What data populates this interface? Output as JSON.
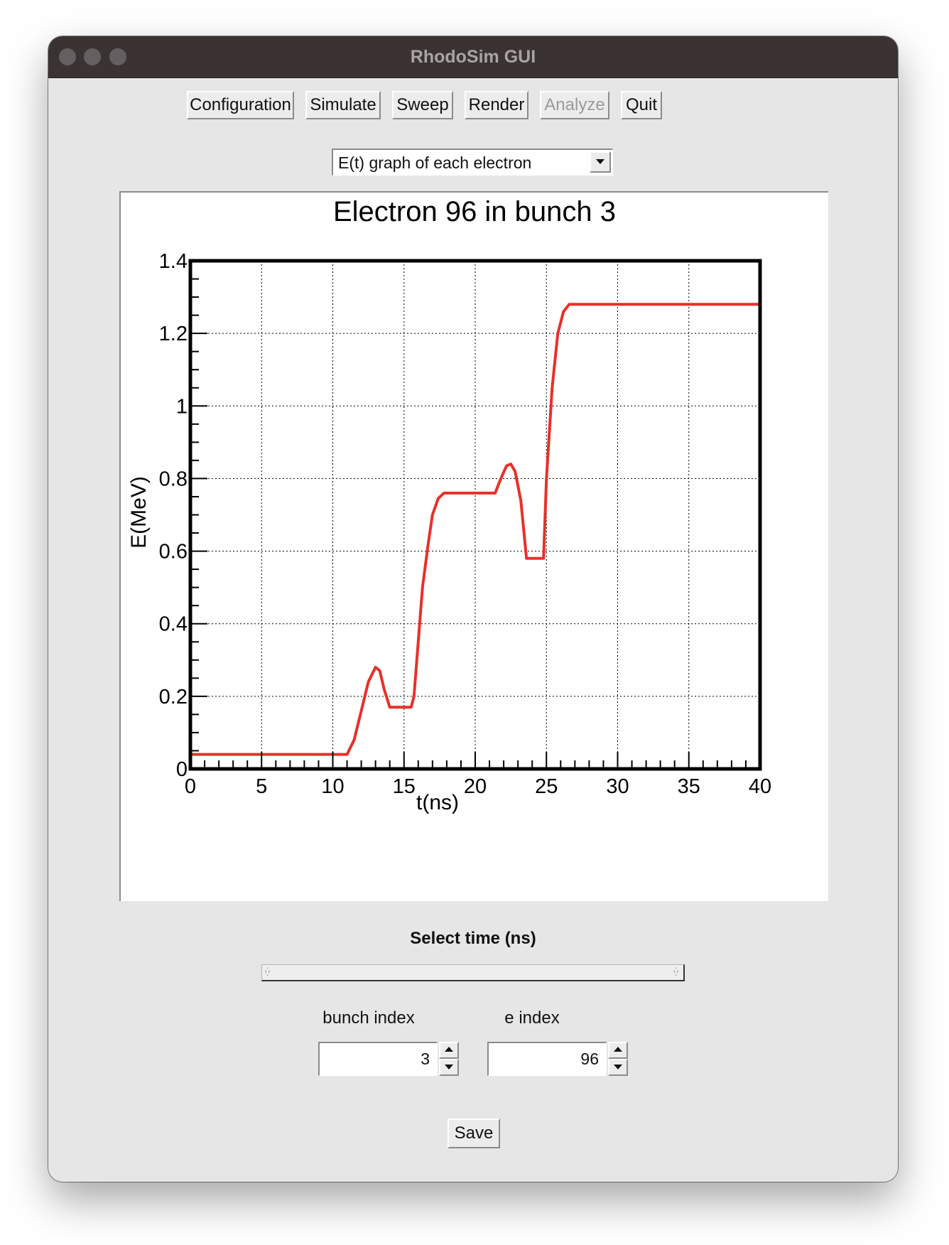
{
  "window": {
    "title": "RhodoSim GUI"
  },
  "toolbar": {
    "buttons": [
      {
        "label": "Configuration",
        "enabled": true
      },
      {
        "label": "Simulate",
        "enabled": true
      },
      {
        "label": "Sweep",
        "enabled": true
      },
      {
        "label": "Render",
        "enabled": true
      },
      {
        "label": "Analyze",
        "enabled": false
      },
      {
        "label": "Quit",
        "enabled": true
      }
    ]
  },
  "view_select": {
    "selected": "E(t) graph of each electron"
  },
  "chart_data": {
    "type": "line",
    "title": "Electron 96 in bunch 3",
    "xlabel": "t(ns)",
    "ylabel": "E(MeV)",
    "xlim": [
      0,
      40
    ],
    "ylim": [
      0,
      1.4
    ],
    "xticks": [
      "0",
      "5",
      "10",
      "15",
      "20",
      "25",
      "30",
      "35",
      "40"
    ],
    "yticks": [
      "0",
      "0.2",
      "0.4",
      "0.6",
      "0.8",
      "1",
      "1.2",
      "1.4"
    ],
    "grid": true,
    "line_color": "#e8302a",
    "series": [
      {
        "x": [
          0,
          0.01,
          11.0,
          11.5,
          12.0,
          12.5,
          13.0,
          13.3,
          13.6,
          14.0,
          14.1,
          15.5,
          15.7,
          16.0,
          16.3,
          16.7,
          17.0,
          17.4,
          17.8,
          18.2,
          21.4,
          21.8,
          22.2,
          22.5,
          22.8,
          23.2,
          23.6,
          24.8,
          25.0,
          25.4,
          25.8,
          26.2,
          26.6,
          27.0,
          40
        ],
        "y": [
          0.01,
          0.04,
          0.04,
          0.08,
          0.16,
          0.24,
          0.28,
          0.27,
          0.22,
          0.17,
          0.17,
          0.17,
          0.2,
          0.35,
          0.5,
          0.62,
          0.7,
          0.745,
          0.76,
          0.76,
          0.76,
          0.8,
          0.835,
          0.84,
          0.82,
          0.74,
          0.58,
          0.58,
          0.8,
          1.05,
          1.2,
          1.26,
          1.28,
          1.28,
          1.28
        ]
      }
    ]
  },
  "time_slider": {
    "label": "Select time (ns)"
  },
  "bunch_index": {
    "label": "bunch index",
    "value": "3"
  },
  "e_index": {
    "label": "e index",
    "value": "96"
  },
  "save": {
    "label": "Save"
  }
}
